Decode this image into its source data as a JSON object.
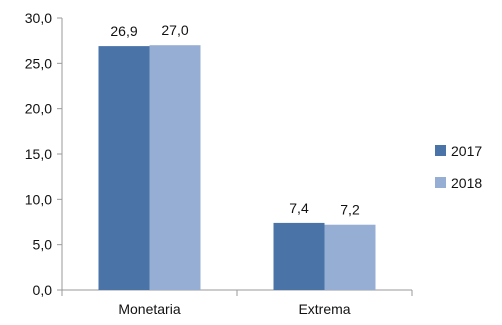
{
  "chart_data": {
    "type": "bar",
    "categories": [
      "Monetaria",
      "Extrema"
    ],
    "series": [
      {
        "name": "2017",
        "values": [
          26.9,
          7.4
        ],
        "color": "#4a73a8"
      },
      {
        "name": "2018",
        "values": [
          27.0,
          7.2
        ],
        "color": "#97aed4"
      }
    ],
    "data_labels": [
      [
        "26,9",
        "7,4"
      ],
      [
        "27,0",
        "7,2"
      ]
    ],
    "yticks": [
      0,
      5,
      10,
      15,
      20,
      25,
      30
    ],
    "ytick_labels": [
      "0,0",
      "5,0",
      "10,0",
      "15,0",
      "20,0",
      "25,0",
      "30,0"
    ],
    "ylim": [
      0,
      30
    ],
    "grid": false,
    "legend_position": "right",
    "title": "",
    "xlabel": "",
    "ylabel": ""
  }
}
